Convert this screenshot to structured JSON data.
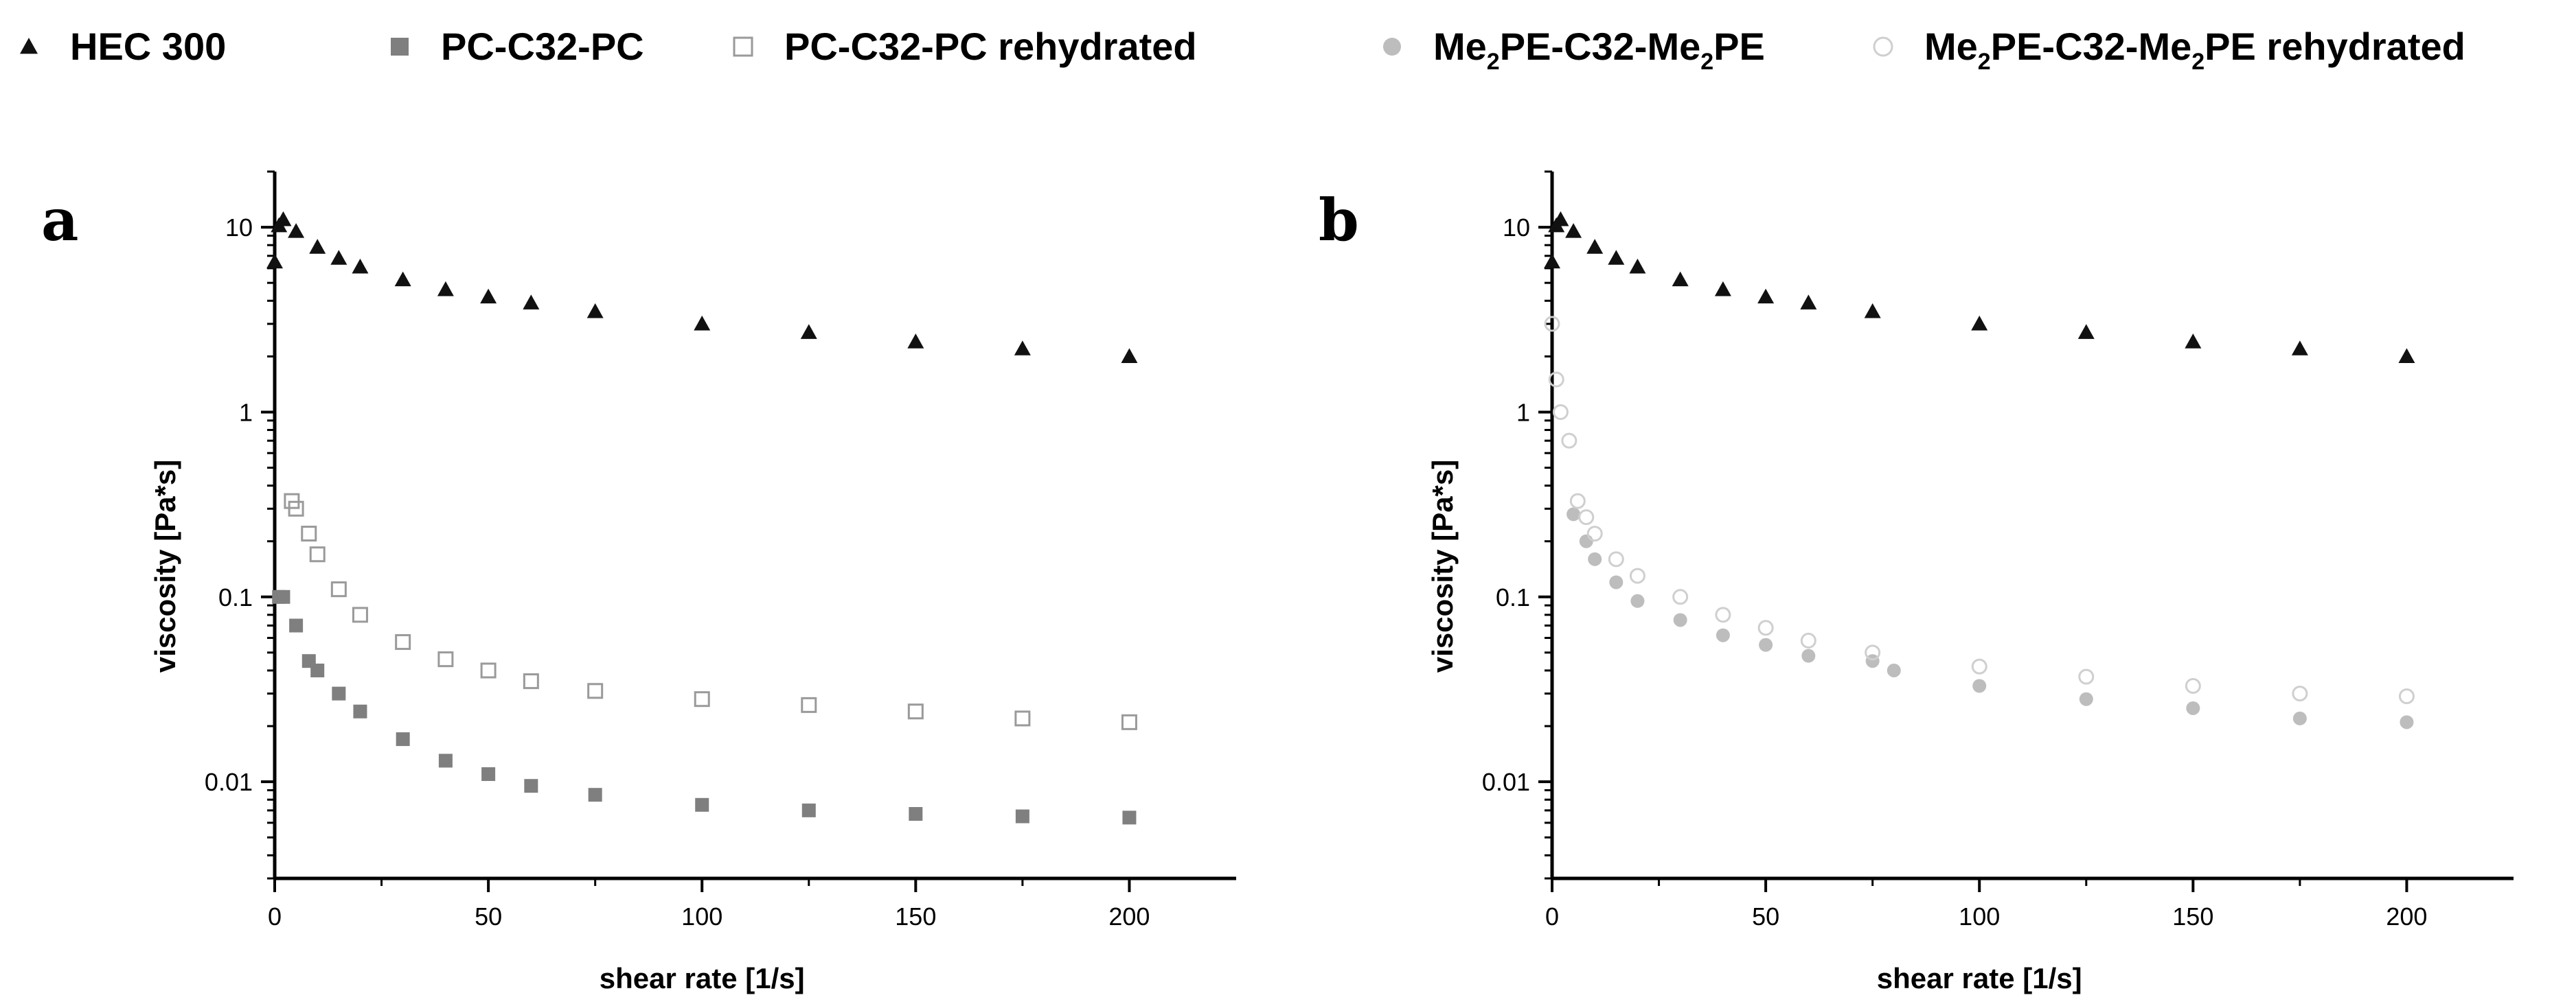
{
  "figure": {
    "legend": [
      {
        "name": "HEC 300",
        "label_html": "HEC 300",
        "marker": "filled-triangle"
      },
      {
        "name": "PC-C32-PC",
        "label_html": "PC-C32-PC",
        "marker": "filled-square"
      },
      {
        "name": "PC-C32-PC rehydrated",
        "label_html": "PC-C32-PC rehydrated",
        "marker": "open-square"
      },
      {
        "name": "Me2PE-C32-Me2PE",
        "label_html": "Me<sub>2</sub>PE-C32-Me<sub>2</sub>PE",
        "marker": "filled-circle"
      },
      {
        "name": "Me2PE-C32-Me2PE rehydrated",
        "label_html": "Me<sub>2</sub>PE-C32-Me<sub>2</sub>PE rehydrated",
        "marker": "open-circle"
      }
    ],
    "colors": {
      "hec": "#111111",
      "pc": "#7f7f7f",
      "pc_rehydrated": "#9a9a9a",
      "me2pe": "#bdbdbd",
      "me2pe_rehydrated": "#cfcfcf",
      "axis": "#000000"
    }
  },
  "chart_data": [
    {
      "id": "a",
      "panel_label": "a",
      "type": "scatter",
      "xlabel": "shear rate [1/s]",
      "ylabel": "viscosity [Pa*s]",
      "xlim": [
        0,
        225
      ],
      "ylim": [
        0.003,
        20
      ],
      "yscale": "log",
      "xticks": [
        0,
        50,
        100,
        150,
        200
      ],
      "xtick_labels": [
        "0",
        "50",
        "100",
        "150",
        "200"
      ],
      "yticks": [
        0.01,
        0.1,
        1,
        10
      ],
      "ytick_labels": [
        "0.01",
        "0.1",
        "1",
        "10"
      ],
      "series": [
        {
          "name": "HEC 300",
          "marker": "filled-triangle",
          "color_key": "hec",
          "x": [
            0,
            1,
            2,
            5,
            10,
            15,
            20,
            30,
            40,
            50,
            60,
            75,
            100,
            125,
            150,
            175,
            200
          ],
          "y": [
            6.5,
            10.2,
            11.0,
            9.5,
            7.8,
            6.8,
            6.1,
            5.2,
            4.6,
            4.2,
            3.9,
            3.5,
            3.0,
            2.7,
            2.4,
            2.2,
            2.0
          ]
        },
        {
          "name": "PC-C32-PC",
          "marker": "filled-square",
          "color_key": "pc",
          "x": [
            1,
            2,
            5,
            8,
            10,
            15,
            20,
            30,
            40,
            50,
            60,
            75,
            100,
            125,
            150,
            175,
            200
          ],
          "y": [
            0.1,
            0.1,
            0.07,
            0.045,
            0.04,
            0.03,
            0.024,
            0.017,
            0.013,
            0.011,
            0.0095,
            0.0085,
            0.0075,
            0.007,
            0.0067,
            0.0065,
            0.0064
          ]
        },
        {
          "name": "PC-C32-PC rehydrated",
          "marker": "open-square",
          "color_key": "pc_rehydrated",
          "x": [
            4,
            5,
            8,
            10,
            15,
            20,
            30,
            40,
            50,
            60,
            75,
            100,
            125,
            150,
            175,
            200
          ],
          "y": [
            0.33,
            0.3,
            0.22,
            0.17,
            0.11,
            0.08,
            0.057,
            0.046,
            0.04,
            0.035,
            0.031,
            0.028,
            0.026,
            0.024,
            0.022,
            0.021
          ]
        }
      ]
    },
    {
      "id": "b",
      "panel_label": "b",
      "type": "scatter",
      "xlabel": "shear rate [1/s]",
      "ylabel": "viscosity [Pa*s]",
      "xlim": [
        0,
        225
      ],
      "ylim": [
        0.003,
        20
      ],
      "yscale": "log",
      "xticks": [
        0,
        50,
        100,
        150,
        200
      ],
      "xtick_labels": [
        "0",
        "50",
        "100",
        "150",
        "200"
      ],
      "yticks": [
        0.01,
        0.1,
        1,
        10
      ],
      "ytick_labels": [
        "0.01",
        "0.1",
        "1",
        "10"
      ],
      "series": [
        {
          "name": "HEC 300",
          "marker": "filled-triangle",
          "color_key": "hec",
          "x": [
            0,
            1,
            2,
            5,
            10,
            15,
            20,
            30,
            40,
            50,
            60,
            75,
            100,
            125,
            150,
            175,
            200
          ],
          "y": [
            6.5,
            10.2,
            11.0,
            9.5,
            7.8,
            6.8,
            6.1,
            5.2,
            4.6,
            4.2,
            3.9,
            3.5,
            3.0,
            2.7,
            2.4,
            2.2,
            2.0
          ]
        },
        {
          "name": "Me2PE-C32-Me2PE",
          "marker": "filled-circle",
          "color_key": "me2pe",
          "x": [
            5,
            8,
            10,
            15,
            20,
            30,
            40,
            50,
            60,
            75,
            80,
            100,
            125,
            150,
            175,
            200
          ],
          "y": [
            0.28,
            0.2,
            0.16,
            0.12,
            0.095,
            0.075,
            0.062,
            0.055,
            0.048,
            0.045,
            0.04,
            0.033,
            0.028,
            0.025,
            0.022,
            0.021
          ]
        },
        {
          "name": "Me2PE-C32-Me2PE rehydrated",
          "marker": "open-circle",
          "color_key": "me2pe_rehydrated",
          "x": [
            0,
            1,
            2,
            4,
            6,
            8,
            10,
            15,
            20,
            30,
            40,
            50,
            60,
            75,
            100,
            125,
            150,
            175,
            200
          ],
          "y": [
            3.0,
            1.5,
            1.0,
            0.7,
            0.33,
            0.27,
            0.22,
            0.16,
            0.13,
            0.1,
            0.08,
            0.068,
            0.058,
            0.05,
            0.042,
            0.037,
            0.033,
            0.03,
            0.029
          ]
        }
      ]
    }
  ]
}
